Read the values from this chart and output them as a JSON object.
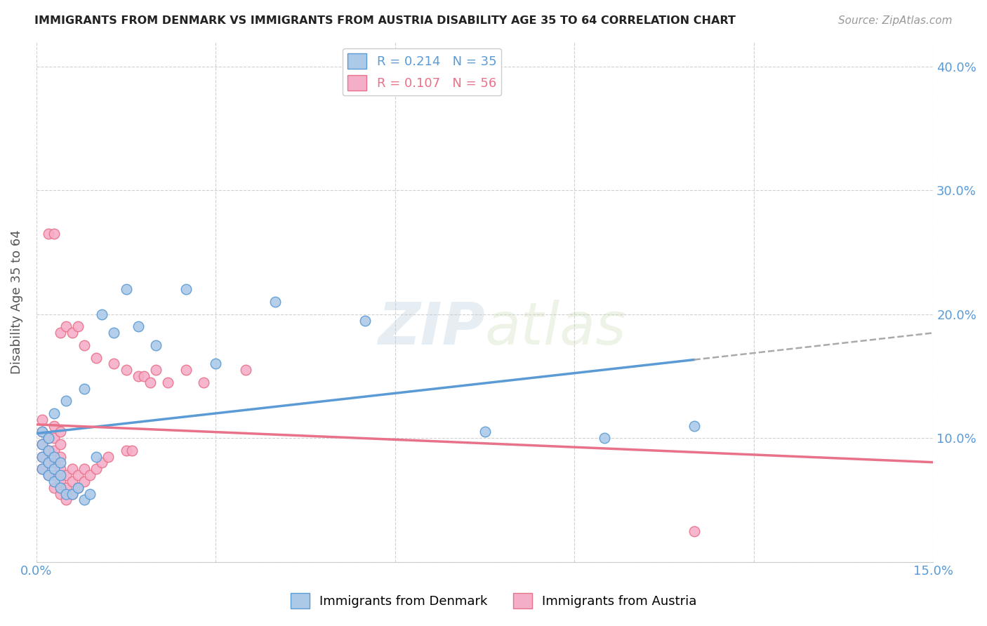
{
  "title": "IMMIGRANTS FROM DENMARK VS IMMIGRANTS FROM AUSTRIA DISABILITY AGE 35 TO 64 CORRELATION CHART",
  "source": "Source: ZipAtlas.com",
  "ylabel": "Disability Age 35 to 64",
  "xlim": [
    0.0,
    0.15
  ],
  "ylim": [
    0.0,
    0.42
  ],
  "denmark_R": 0.214,
  "denmark_N": 35,
  "austria_R": 0.107,
  "austria_N": 56,
  "denmark_color": "#adc9e8",
  "austria_color": "#f5aec8",
  "denmark_line_color": "#5b9bd5",
  "austria_line_color": "#e8728a",
  "denmark_x": [
    0.001,
    0.001,
    0.001,
    0.001,
    0.002,
    0.002,
    0.002,
    0.002,
    0.003,
    0.003,
    0.003,
    0.003,
    0.004,
    0.004,
    0.004,
    0.005,
    0.005,
    0.006,
    0.007,
    0.008,
    0.008,
    0.009,
    0.01,
    0.011,
    0.013,
    0.015,
    0.017,
    0.02,
    0.025,
    0.03,
    0.04,
    0.055,
    0.075,
    0.095,
    0.11
  ],
  "denmark_y": [
    0.075,
    0.085,
    0.095,
    0.105,
    0.07,
    0.08,
    0.09,
    0.1,
    0.065,
    0.075,
    0.085,
    0.12,
    0.06,
    0.07,
    0.08,
    0.055,
    0.13,
    0.055,
    0.06,
    0.05,
    0.14,
    0.055,
    0.085,
    0.2,
    0.185,
    0.22,
    0.19,
    0.175,
    0.22,
    0.16,
    0.21,
    0.195,
    0.105,
    0.1,
    0.11
  ],
  "austria_x": [
    0.001,
    0.001,
    0.001,
    0.001,
    0.001,
    0.002,
    0.002,
    0.002,
    0.002,
    0.002,
    0.003,
    0.003,
    0.003,
    0.003,
    0.003,
    0.003,
    0.003,
    0.004,
    0.004,
    0.004,
    0.004,
    0.004,
    0.004,
    0.004,
    0.005,
    0.005,
    0.005,
    0.005,
    0.006,
    0.006,
    0.006,
    0.006,
    0.007,
    0.007,
    0.007,
    0.008,
    0.008,
    0.008,
    0.009,
    0.01,
    0.01,
    0.011,
    0.012,
    0.013,
    0.015,
    0.015,
    0.016,
    0.017,
    0.018,
    0.019,
    0.02,
    0.022,
    0.025,
    0.028,
    0.035,
    0.11
  ],
  "austria_y": [
    0.075,
    0.085,
    0.095,
    0.105,
    0.115,
    0.07,
    0.08,
    0.09,
    0.1,
    0.265,
    0.06,
    0.07,
    0.08,
    0.09,
    0.1,
    0.11,
    0.265,
    0.055,
    0.065,
    0.075,
    0.085,
    0.095,
    0.105,
    0.185,
    0.05,
    0.06,
    0.07,
    0.19,
    0.055,
    0.065,
    0.075,
    0.185,
    0.06,
    0.07,
    0.19,
    0.065,
    0.075,
    0.175,
    0.07,
    0.075,
    0.165,
    0.08,
    0.085,
    0.16,
    0.09,
    0.155,
    0.09,
    0.15,
    0.15,
    0.145,
    0.155,
    0.145,
    0.155,
    0.145,
    0.155,
    0.025
  ]
}
